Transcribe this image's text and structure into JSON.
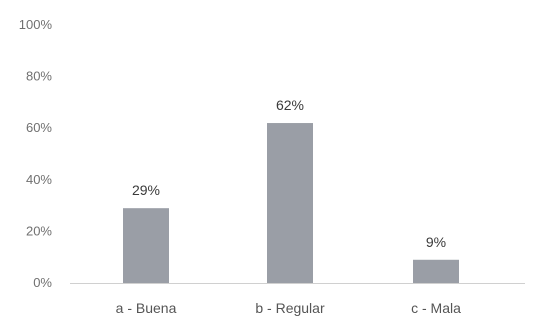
{
  "chart_data": {
    "type": "bar",
    "categories": [
      "a - Buena",
      "b - Regular",
      "c - Mala"
    ],
    "values": [
      29,
      62,
      9
    ],
    "data_labels": [
      "29%",
      "62%",
      "9%"
    ],
    "y_ticks": [
      "0%",
      "20%",
      "40%",
      "60%",
      "80%",
      "100%"
    ],
    "ylim": [
      0,
      100
    ],
    "grid": false,
    "title": "",
    "xlabel": "",
    "ylabel": "",
    "bar_color": "#9a9ea6"
  }
}
